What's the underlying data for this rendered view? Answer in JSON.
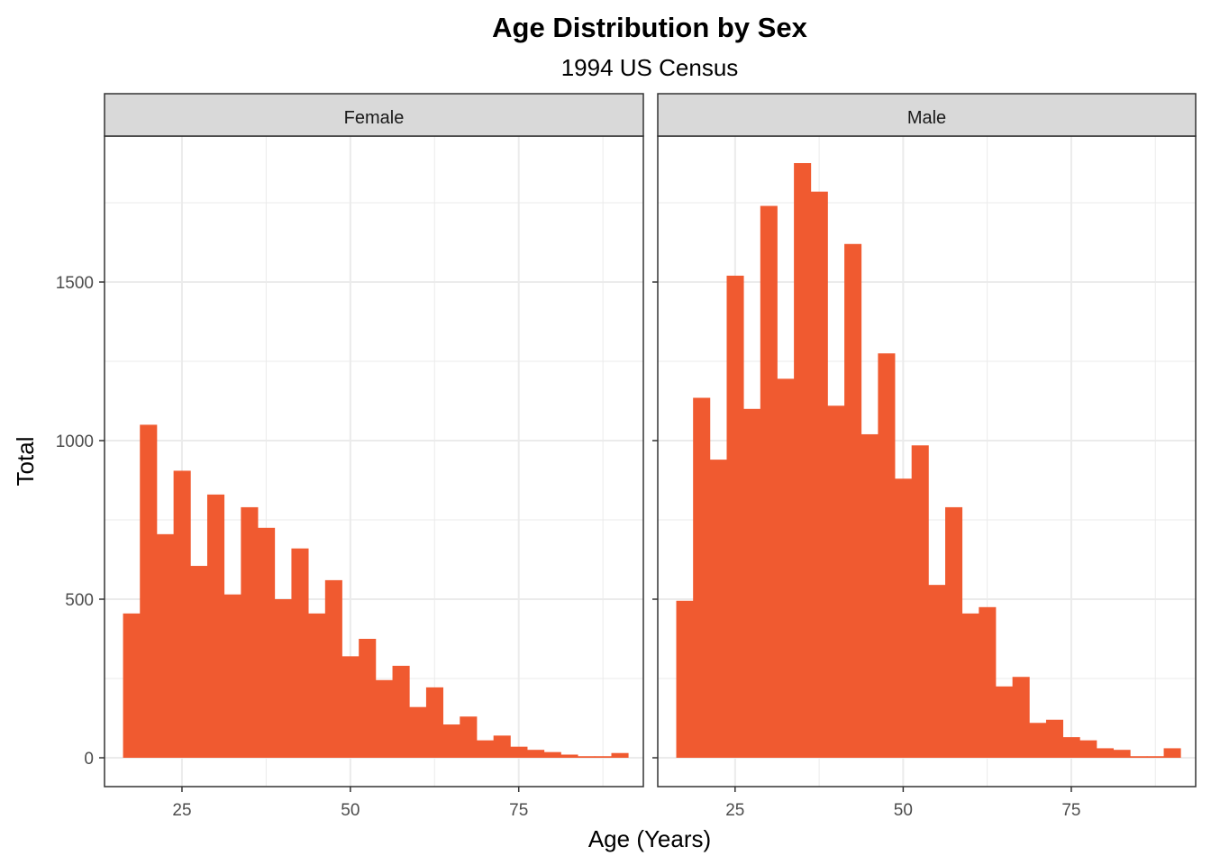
{
  "chart_data": {
    "type": "bar",
    "title": "Age Distribution by Sex",
    "subtitle": "1994 US Census",
    "xlabel": "Age (Years)",
    "ylabel": "Total",
    "xlim": [
      13.5,
      93.5
    ],
    "ylim": [
      -90,
      1960
    ],
    "x_ticks": [
      25,
      50,
      75
    ],
    "y_ticks": [
      0,
      500,
      1000,
      1500
    ],
    "grid": true,
    "bin_width": 2.5,
    "bin_starts": [
      16.25,
      18.75,
      21.25,
      23.75,
      26.25,
      28.75,
      31.25,
      33.75,
      36.25,
      38.75,
      41.25,
      43.75,
      46.25,
      48.75,
      51.25,
      53.75,
      56.25,
      58.75,
      61.25,
      63.75,
      66.25,
      68.75,
      71.25,
      73.75,
      76.25,
      78.75,
      81.25,
      83.75,
      86.25,
      88.75
    ],
    "panels": [
      {
        "label": "Female",
        "values": [
          455,
          1050,
          705,
          905,
          605,
          830,
          515,
          790,
          725,
          500,
          660,
          455,
          560,
          320,
          375,
          245,
          290,
          160,
          222,
          105,
          130,
          55,
          70,
          35,
          25,
          18,
          10,
          5,
          5,
          15
        ]
      },
      {
        "label": "Male",
        "values": [
          495,
          1135,
          940,
          1520,
          1100,
          1740,
          1195,
          1875,
          1785,
          1110,
          1620,
          1020,
          1275,
          880,
          985,
          545,
          790,
          455,
          475,
          225,
          255,
          110,
          120,
          65,
          55,
          30,
          25,
          5,
          5,
          30
        ]
      }
    ],
    "colors": {
      "bar": "#F05A30",
      "strip_fill": "#D9D9D9",
      "grid": "#EBEBEB",
      "panel_border": "#333333"
    }
  }
}
